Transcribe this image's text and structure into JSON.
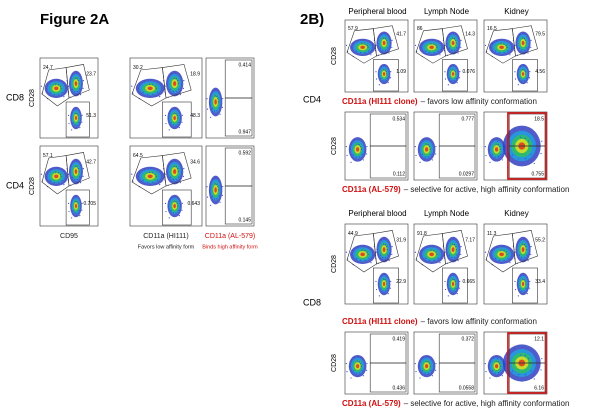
{
  "figure_2a": {
    "title": "Figure 2A",
    "y_label": "CD28",
    "rows": [
      {
        "label": "CD8",
        "plots": [
          [
            "24.7",
            "23.7",
            "51.3"
          ],
          [
            "30.2",
            "18.9",
            "48.3"
          ],
          [
            "0.414",
            "0.947"
          ]
        ]
      },
      {
        "label": "CD4",
        "plots": [
          [
            "57.1",
            "42.7",
            "0.705"
          ],
          [
            "64.5",
            "34.6",
            "0.643"
          ],
          [
            "0.592",
            "0.145"
          ]
        ]
      }
    ],
    "x_labels": [
      "CD95",
      "CD11a (HI111)",
      "CD11a (AL-579)"
    ],
    "x_notes": [
      "Favors low affinity form",
      "Binds high affinity form"
    ]
  },
  "figure_2b": {
    "title": "2B)",
    "y_label": "CD28",
    "columns": [
      "Peripheral blood",
      "Lymph Node",
      "Kidney"
    ],
    "sections": [
      {
        "label": "CD4",
        "rows": [
          {
            "marker": "CD11a (HI111 clone)",
            "note": "– favors low affinity conformation",
            "plots": [
              [
                "57.9",
                "41.7",
                "1.09"
              ],
              [
                "86",
                "14.3",
                "0.076"
              ],
              [
                "16.5",
                "79.5",
                "4.56"
              ]
            ]
          },
          {
            "marker": "CD11a (AL-579)",
            "note": "– selective for active, high affinity conformation",
            "plots": [
              [
                "0.534",
                "0.112"
              ],
              [
                "0.777",
                "0.0297"
              ],
              [
                "18.5",
                "0.755"
              ]
            ]
          }
        ]
      },
      {
        "label": "CD8",
        "rows": [
          {
            "marker": "CD11a (HI111 clone)",
            "note": "– favors low affinity conformation",
            "plots": [
              [
                "44.9",
                "31.9",
                "22.9"
              ],
              [
                "91.8",
                "7.17",
                "0.665"
              ],
              [
                "11.3",
                "55.2",
                "33.4"
              ]
            ]
          },
          {
            "marker": "CD11a (AL-579)",
            "note": "– selective for active, high affinity conformation",
            "plots": [
              [
                "0.419",
                "0.436"
              ],
              [
                "0.372",
                "0.0558"
              ],
              [
                "12.1",
                "6.16"
              ]
            ]
          }
        ]
      }
    ]
  }
}
